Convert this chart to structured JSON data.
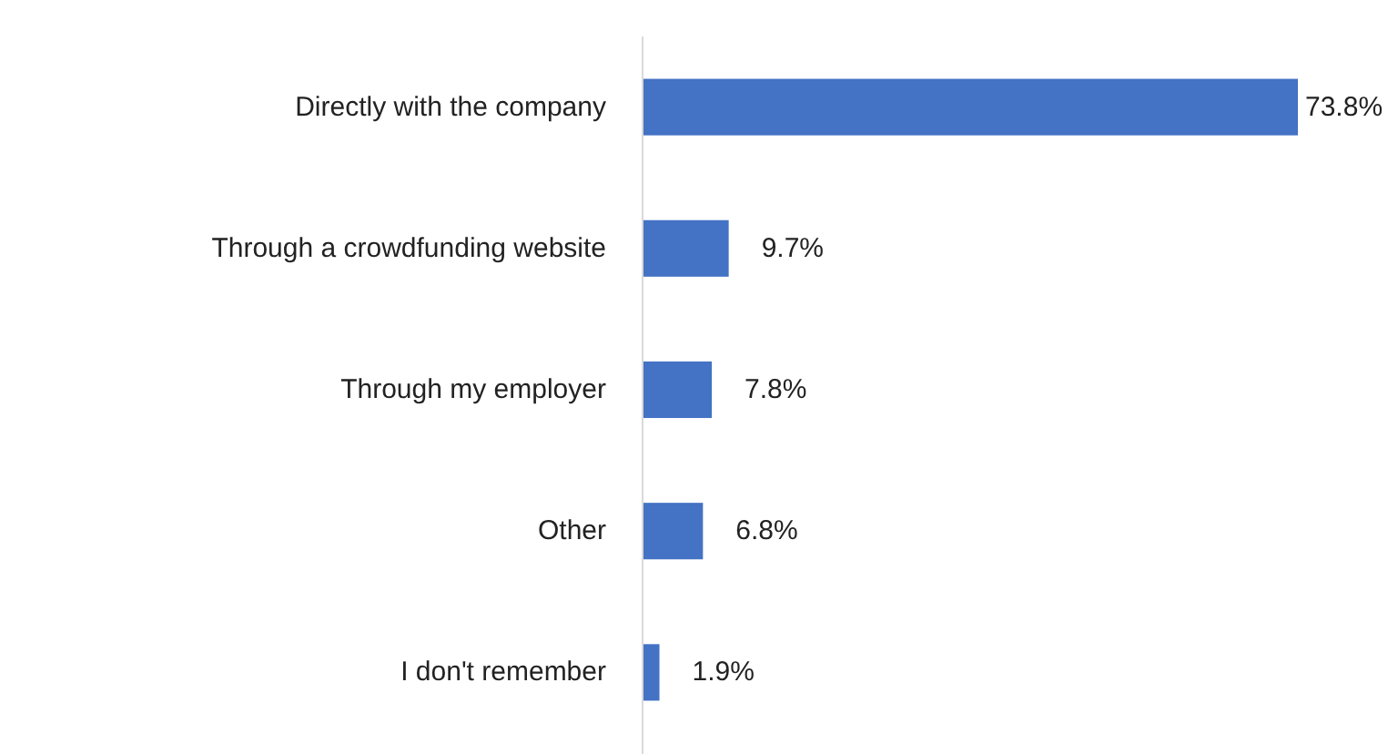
{
  "chart_data": {
    "type": "bar",
    "orientation": "horizontal",
    "categories": [
      "Directly with the company",
      "Through a crowdfunding website",
      "Through my employer",
      "Other",
      "I don't remember"
    ],
    "values": [
      73.8,
      9.7,
      7.8,
      6.8,
      1.9
    ],
    "value_labels": [
      "73.8%",
      "9.7%",
      "7.8%",
      "6.8%",
      "1.9%"
    ],
    "color": "#4472c4"
  }
}
